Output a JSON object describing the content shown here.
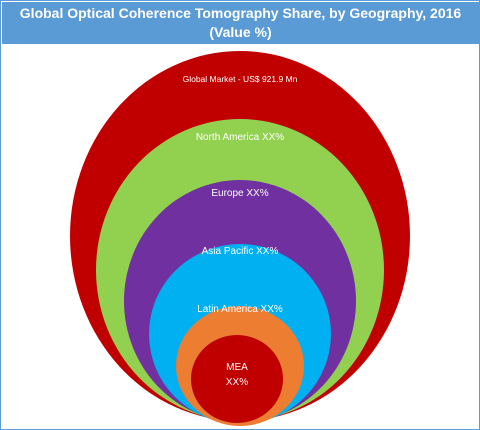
{
  "title": {
    "line1": "Global Optical Coherence Tomography Share, by Geography, 2016",
    "line2": "(Value %)"
  },
  "chart_data": {
    "type": "nested-circles",
    "title": "Global Optical Coherence Tomography Share, by Geography, 2016 (Value %)",
    "items": [
      {
        "label": "Global Market - US$ 921.9 Mn",
        "color": "#c00000"
      },
      {
        "label": "North America XX%",
        "color": "#92d050"
      },
      {
        "label": "Europe  XX%",
        "color": "#7030a0"
      },
      {
        "label": "Asia Pacific XX%",
        "color": "#00b0f0"
      },
      {
        "label": "Latin America XX%",
        "color": "#ed7d31"
      },
      {
        "label": "MEA",
        "label2": "XX%",
        "color": "#c00000"
      }
    ]
  }
}
